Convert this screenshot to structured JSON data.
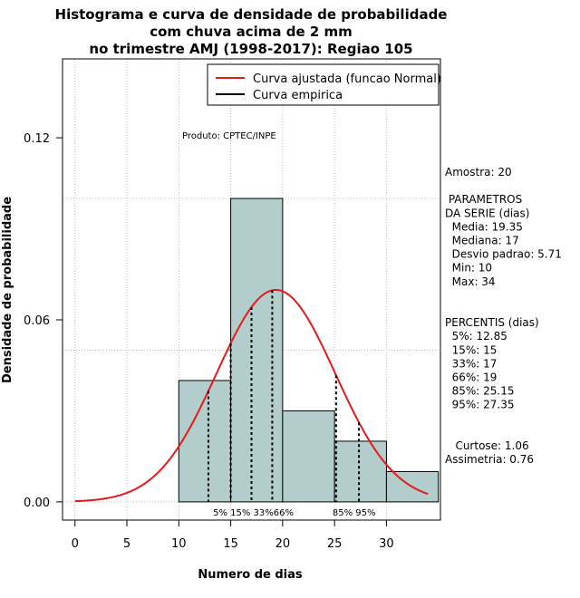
{
  "chart_data": {
    "type": "histogram",
    "title_lines": [
      "Histograma e curva de densidade de probabilidade",
      "com chuva acima de 2 mm",
      "no trimestre AMJ (1998-2017): Regiao 105"
    ],
    "xlabel": "Numero de dias",
    "ylabel": "Densidade de probabilidade",
    "xlim": [
      -1.2,
      35.2
    ],
    "ylim": [
      -0.006,
      0.146
    ],
    "x_ticks": [
      0,
      5,
      10,
      15,
      20,
      25,
      30
    ],
    "y_ticks": [
      0.0,
      0.06,
      0.12
    ],
    "y_tick_labels": [
      "0.00",
      "0.06",
      "0.12"
    ],
    "grid_y": [
      0.0,
      0.05,
      0.1
    ],
    "bins": [
      {
        "start": 10,
        "end": 15,
        "density": 0.04
      },
      {
        "start": 15,
        "end": 20,
        "density": 0.1
      },
      {
        "start": 20,
        "end": 25,
        "density": 0.03
      },
      {
        "start": 25,
        "end": 30,
        "density": 0.02
      },
      {
        "start": 30,
        "end": 35,
        "density": 0.01
      }
    ],
    "normal_curve": {
      "mean": 19.35,
      "sd": 5.71,
      "x_from": 0,
      "x_to": 34
    },
    "percentile_lines": [
      {
        "label": "5%",
        "x": 12.85
      },
      {
        "label": "15%",
        "x": 15
      },
      {
        "label": "33%",
        "x": 17
      },
      {
        "label": "66%",
        "x": 19
      },
      {
        "label": "85%",
        "x": 25.15
      },
      {
        "label": "95%",
        "x": 27.35
      }
    ],
    "percentile_label_groups": [
      {
        "text": "5%  15% 33%66%",
        "x": 13.3
      },
      {
        "text": "85%  95%",
        "x": 24.8
      }
    ],
    "legend": {
      "position": "top-right",
      "entries": [
        {
          "label": "Curva ajustada (funcao Normal)",
          "color": "#e41a1c"
        },
        {
          "label": "Curva empirica",
          "color": "#000000"
        }
      ]
    },
    "annotation": "Produto: CPTEC/INPE",
    "colors": {
      "bar_fill": "#b3cdcd",
      "curve": "#e41a1c",
      "grid": "#bbbbbb"
    }
  },
  "side_panel": {
    "lines": [
      "Amostra: 20",
      "",
      " PARAMETROS",
      "DA SERIE (dias)",
      "  Media: 19.35",
      "  Mediana: 17",
      "  Desvio padrao: 5.71",
      "  Min: 10",
      "  Max: 34",
      "",
      "",
      "PERCENTIS (dias)",
      "  5%: 12.85",
      "  15%: 15",
      "  33%: 17",
      "  66%: 19",
      "  85%: 25.15",
      "  95%: 27.35",
      "",
      "",
      "   Curtose: 1.06",
      "Assimetria: 0.76"
    ]
  }
}
